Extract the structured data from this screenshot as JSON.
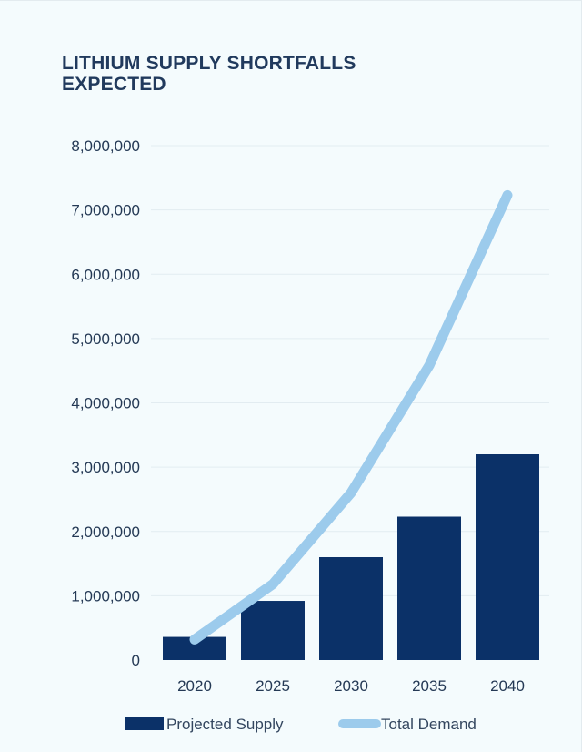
{
  "chart_data": {
    "type": "bar",
    "title": "LITHIUM SUPPLY SHORTFALLS EXPECTED",
    "categories": [
      "2020",
      "2025",
      "2030",
      "2035",
      "2040"
    ],
    "series": [
      {
        "name": "Projected Supply",
        "type": "bar",
        "values": [
          360000,
          920000,
          1600000,
          2230000,
          3200000
        ]
      },
      {
        "name": "Total Demand",
        "type": "line",
        "values": [
          320000,
          1180000,
          2600000,
          4580000,
          7230000
        ]
      }
    ],
    "yticks": [
      "0",
      "1,000,000",
      "2,000,000",
      "3,000,000",
      "4,000,000",
      "5,000,000",
      "6,000,000",
      "7,000,000",
      "8,000,000"
    ],
    "ylim": [
      0,
      8000000
    ],
    "xlabel": "",
    "ylabel": "",
    "grid": true,
    "legend": "bottom"
  },
  "colors": {
    "bar": "#0b3168",
    "line": "#9ccbec",
    "grid": "#e2ecf1",
    "text": "#243955"
  }
}
